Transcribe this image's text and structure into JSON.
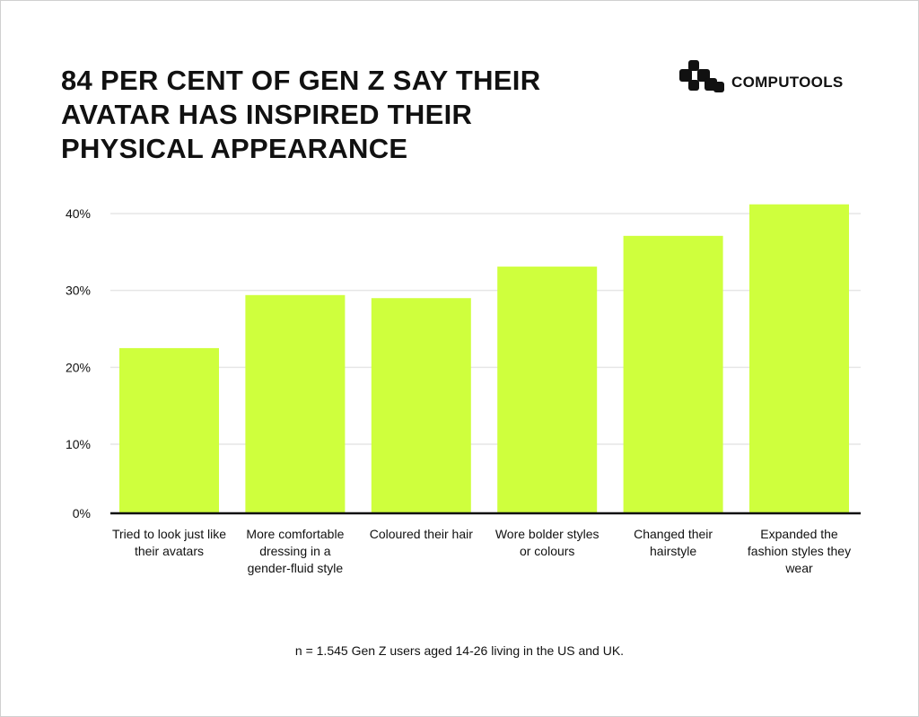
{
  "brand": {
    "name": "COMPUTOOLS",
    "logo_icon": "computools-logo-icon"
  },
  "chart_data": {
    "type": "bar",
    "title": "84 PER CENT OF GEN Z SAY THEIR AVATAR HAS INSPIRED THEIR PHYSICAL APPEARANCE",
    "categories": [
      "Tried to look just like their avatars",
      "More comfortable dressing in a gender-fluid style",
      "Coloured their hair",
      "Wore bolder styles or colours",
      "Changed their hairstyle",
      "Expanded the fashion styles they wear"
    ],
    "values": [
      22.5,
      29.4,
      29.0,
      33.1,
      37.1,
      41.2
    ],
    "unit": "%",
    "yticks": [
      "0%",
      "10%",
      "20%",
      "30%",
      "40%"
    ],
    "ylim": [
      0,
      40
    ],
    "grid": true,
    "bar_color": "#cfff3d",
    "note": "n = 1.545 Gen Z users aged 14-26 living in the US and UK."
  }
}
